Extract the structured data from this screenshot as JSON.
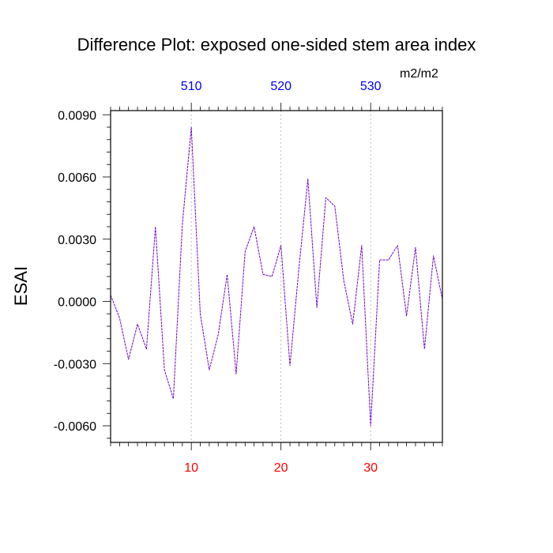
{
  "chart_data": {
    "type": "line",
    "title": "Difference Plot: exposed one-sided stem area index",
    "units": "m2/m2",
    "ylabel": "ESAI",
    "xlabel": "",
    "xlim": [
      1,
      38
    ],
    "ylim": [
      -0.0068,
      0.0092
    ],
    "x_ticks": [
      10,
      20,
      30
    ],
    "x_tick_labels": [
      "10",
      "20",
      "30"
    ],
    "top_ticks": [
      10,
      20,
      30
    ],
    "top_tick_labels": [
      "510",
      "520",
      "530"
    ],
    "y_ticks": [
      -0.006,
      -0.003,
      0,
      0.003,
      0.006,
      0.009
    ],
    "y_tick_labels": [
      "-0.0060",
      "-0.0030",
      "0.0000",
      "0.0030",
      "0.0060",
      "0.0090"
    ],
    "grid": "vertical dotted lines at x ticks",
    "colors": {
      "line": "#7000c8",
      "bottom_ticks": "#ff0000",
      "top_ticks": "#0000ff",
      "grid": "#aaaaaa"
    },
    "series": [
      {
        "x": [
          1,
          2,
          3,
          4,
          5,
          6,
          7,
          8,
          9,
          10,
          11,
          12,
          13,
          14,
          15,
          16,
          17,
          18,
          19,
          20,
          21,
          22,
          23,
          24,
          25,
          26,
          27,
          28,
          29,
          30,
          31,
          32,
          33,
          34,
          35,
          36,
          37,
          38
        ],
        "values": [
          0.0003,
          -0.0008,
          -0.0028,
          -0.0011,
          -0.0023,
          0.0036,
          -0.0033,
          -0.0047,
          0.0037,
          0.0084,
          -0.0006,
          -0.0033,
          -0.0016,
          0.0013,
          -0.0035,
          0.0024,
          0.0036,
          0.0013,
          0.0012,
          0.0027,
          -0.0031,
          0.0016,
          0.0059,
          -0.0003,
          0.005,
          0.0046,
          0.001,
          -0.0011,
          0.0027,
          -0.006,
          0.002,
          0.002,
          0.0027,
          -0.0007,
          0.0026,
          -0.0023,
          0.0022,
          0.0001
        ]
      }
    ]
  }
}
